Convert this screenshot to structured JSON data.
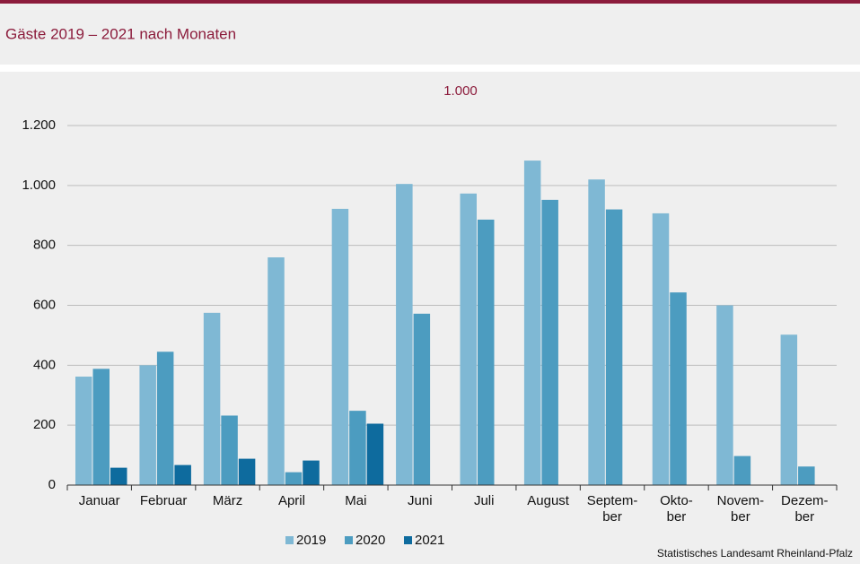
{
  "chart_data": {
    "type": "bar",
    "title": "Gäste 2019 – 2021 nach Monaten",
    "subtitle": "1.000",
    "categories": [
      "Januar",
      "Februar",
      "März",
      "April",
      "Mai",
      "Juni",
      "Juli",
      "August",
      "Septem-\nber",
      "Okto-\nber",
      "Novem-\nber",
      "Dezem-\nber"
    ],
    "series": [
      {
        "name": "2019",
        "color": "#7fb8d4",
        "values": [
          362,
          400,
          575,
          760,
          922,
          1005,
          973,
          1083,
          1020,
          907,
          600,
          502
        ]
      },
      {
        "name": "2020",
        "color": "#4c9cc0",
        "values": [
          388,
          445,
          232,
          43,
          248,
          572,
          886,
          952,
          920,
          643,
          97,
          62
        ]
      },
      {
        "name": "2021",
        "color": "#0e6b9e",
        "values": [
          58,
          67,
          88,
          82,
          205,
          null,
          null,
          null,
          null,
          null,
          null,
          null
        ]
      }
    ],
    "ylim": [
      0,
      1200
    ],
    "yticks": [
      0,
      200,
      400,
      600,
      800,
      {
        "value": 1000,
        "label": "1.000"
      },
      {
        "value": 1200,
        "label": "1.200"
      }
    ],
    "grid": true,
    "legend": "bottom",
    "source": "Statistisches Landesamt Rheinland-Pfalz"
  }
}
